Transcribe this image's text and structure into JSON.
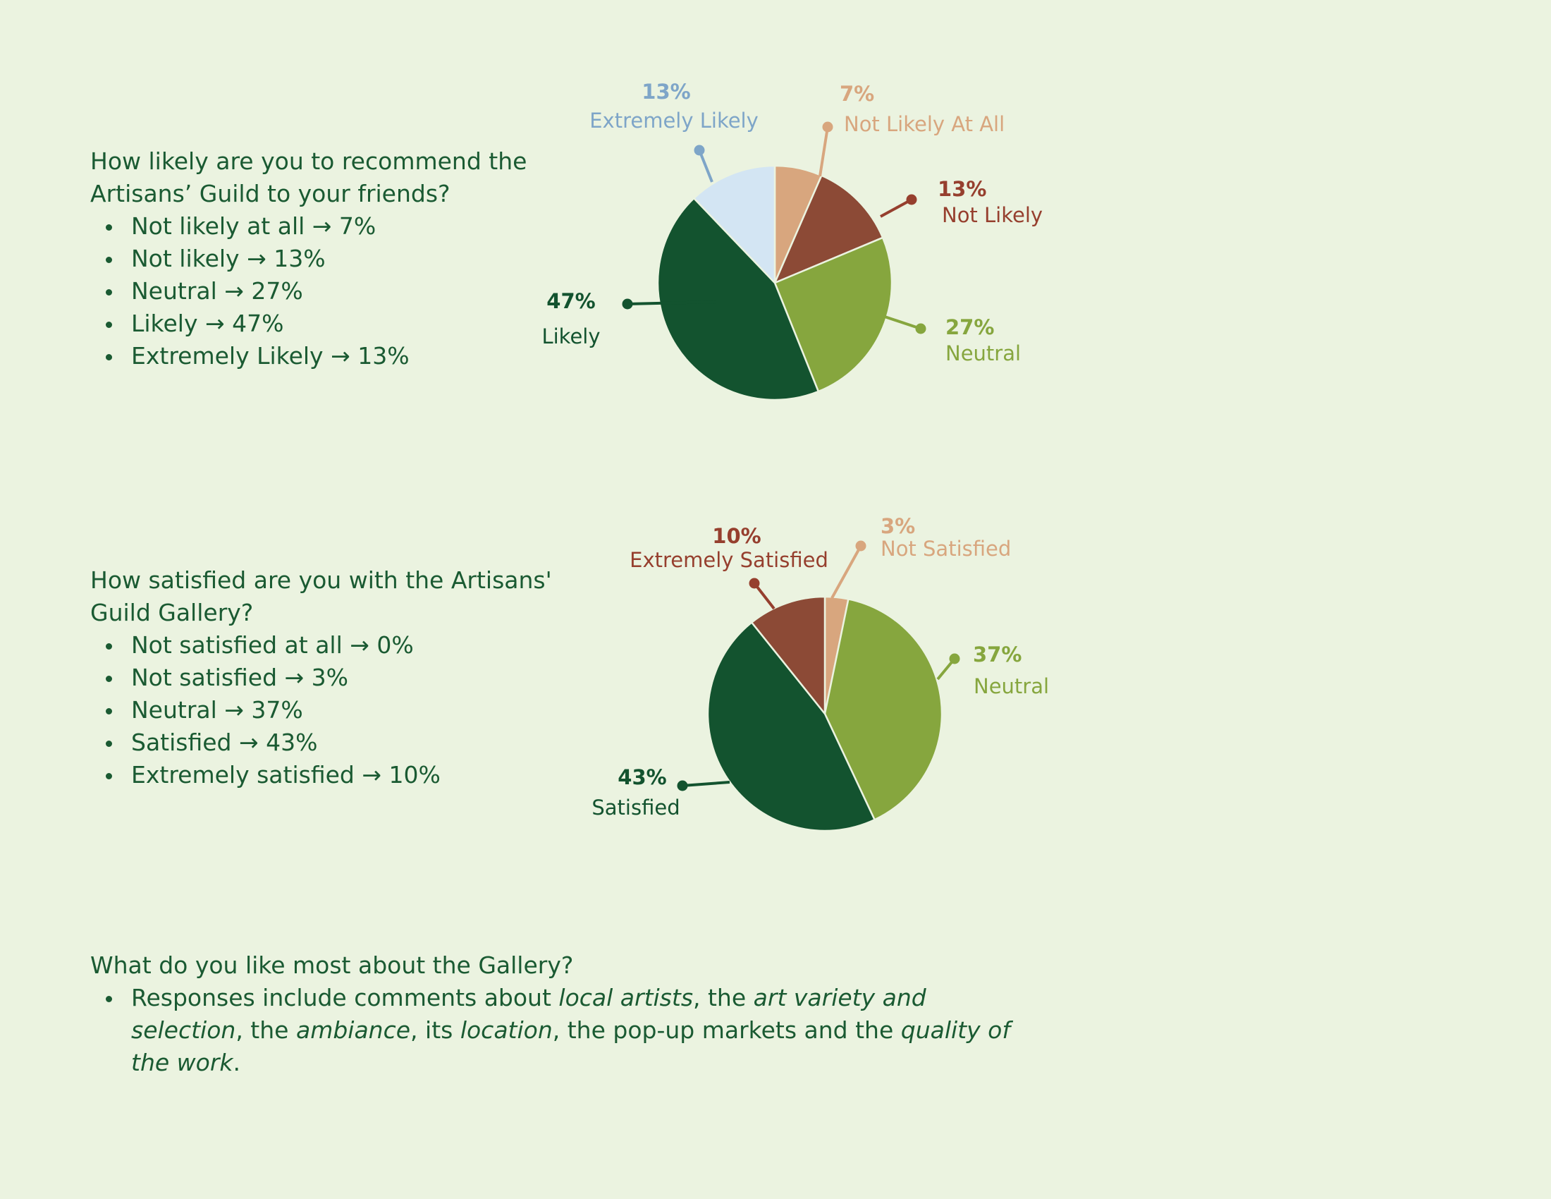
{
  "sections": [
    {
      "question": "How likely are you to recommend the Artisans’ Guild to your friends?",
      "items": [
        "Not likely at all → 7%",
        "Not likely → 13%",
        "Neutral → 27%",
        "Likely → 47%",
        "Extremely Likely → 13%"
      ]
    },
    {
      "question": "How satisfied are you with the Artisans' Guild Gallery?",
      "items": [
        "Not satisfied at all → 0%",
        "Not satisfied → 3%",
        "Neutral → 37%",
        "Satisfied → 43%",
        "Extremely satisfied → 10%"
      ]
    },
    {
      "question": "What do you like most about the Gallery?",
      "response_parts": [
        {
          "text": "Responses include comments about ",
          "italic": false
        },
        {
          "text": "local artists",
          "italic": true
        },
        {
          "text": ", the ",
          "italic": false
        },
        {
          "text": "art variety and selection",
          "italic": true
        },
        {
          "text": ", the ",
          "italic": false
        },
        {
          "text": "ambiance",
          "italic": true
        },
        {
          "text": ", its ",
          "italic": false
        },
        {
          "text": "location",
          "italic": true
        },
        {
          "text": ", the pop-up markets and the ",
          "italic": false
        },
        {
          "text": "quality of the work",
          "italic": true
        },
        {
          "text": ".",
          "italic": false
        }
      ]
    }
  ],
  "chart_data": [
    {
      "type": "pie",
      "start_angle_deg": 0,
      "direction": "clockwise",
      "slices": [
        {
          "name": "Not Likely At All",
          "value": 7,
          "label": "7%",
          "color": "#d8a67e"
        },
        {
          "name": "Not Likely",
          "value": 13,
          "label": "13%",
          "color": "#8c4a36"
        },
        {
          "name": "Neutral",
          "value": 27,
          "label": "27%",
          "color": "#86a63e"
        },
        {
          "name": "Likely",
          "value": 47,
          "label": "47%",
          "color": "#13532f"
        },
        {
          "name": "Extremely Likely",
          "value": 13,
          "label": "13%",
          "color": "#d3e5f3"
        }
      ],
      "label_colors": [
        "#d8a67e",
        "#963f2e",
        "#86a63e",
        "#13532f",
        "#7ea5c8"
      ]
    },
    {
      "type": "pie",
      "start_angle_deg": 0,
      "direction": "clockwise",
      "slices": [
        {
          "name": "Not Satisfied",
          "value": 3,
          "label": "3%",
          "color": "#d8a67e"
        },
        {
          "name": "Neutral",
          "value": 37,
          "label": "37%",
          "color": "#86a63e"
        },
        {
          "name": "Satisfied",
          "value": 43,
          "label": "43%",
          "color": "#13532f"
        },
        {
          "name": "Extremely Satisfied",
          "value": 10,
          "label": "10%",
          "color": "#8c4a36"
        }
      ],
      "label_colors": [
        "#d8a67e",
        "#86a63e",
        "#13532f",
        "#963f2e"
      ]
    }
  ]
}
